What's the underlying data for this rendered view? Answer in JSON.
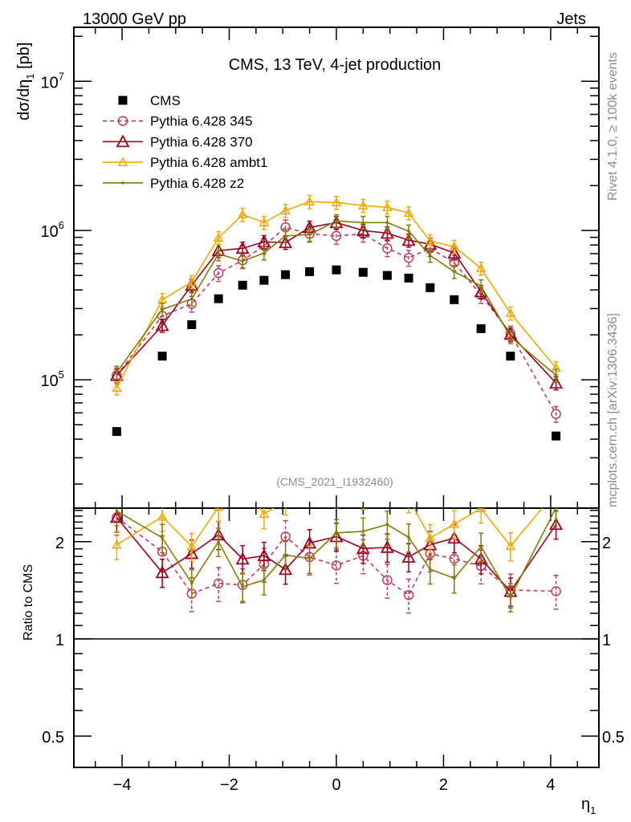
{
  "header": {
    "left": "13000 GeV pp",
    "right": "Jets"
  },
  "side_labels": {
    "rivet": "Rivet 4.1.0, ≥ 100k events",
    "mcplots": "mcplots.cern.ch [arXiv:1306.3436]"
  },
  "analysis_id": "(CMS_2021_I1932460)",
  "chart_data": {
    "type": "scatter",
    "title": "CMS, 13 TeV, 4-jet production",
    "ylabel": "dσ/dη",
    "ylabel_sub": "1",
    "ylabel_unit": "[pb]",
    "xlabel": "η",
    "xlabel_sub": "1",
    "ratio_ylabel": "Ratio to CMS",
    "xlim": [
      -4.9,
      4.9
    ],
    "ylim": [
      13800,
      23000000
    ],
    "yscale": "log",
    "ratio_ylim": [
      0.4,
      2.54
    ],
    "ratio_yscale": "log",
    "grid": false,
    "legend_position": "top-left",
    "x_ticks": [
      -4,
      -2,
      0,
      2,
      4
    ],
    "x_tick_labels": [
      "−4",
      "−2",
      "0",
      "2",
      "4"
    ],
    "y_ticks": [
      100000,
      1000000,
      10000000
    ],
    "y_tick_labels": [
      {
        "base": "10",
        "exp": "5"
      },
      {
        "base": "10",
        "exp": "6"
      },
      {
        "base": "10",
        "exp": "7"
      }
    ],
    "ratio_ticks": [
      0.5,
      1,
      2
    ],
    "ratio_tick_labels": [
      "0.5",
      "1",
      "2"
    ],
    "x": [
      -4.1,
      -3.25,
      -2.7,
      -2.2,
      -1.75,
      -1.35,
      -0.95,
      -0.5,
      0,
      0.5,
      0.95,
      1.35,
      1.75,
      2.2,
      2.7,
      3.25,
      4.1
    ],
    "reference": {
      "name": "CMS",
      "color": "#000000",
      "marker": "square",
      "values": [
        45000,
        144000,
        234000,
        349000,
        430000,
        464000,
        506000,
        530000,
        545000,
        525000,
        500000,
        480000,
        414000,
        344000,
        220000,
        144000,
        42000
      ]
    },
    "series": [
      {
        "name": "Pythia 6.428 345",
        "color": "#c23a5e",
        "marker": "circle",
        "dashed": true,
        "rel_error": 0.12,
        "values": [
          107000,
          268000,
          323000,
          518000,
          632000,
          790000,
          1050000,
          950000,
          920000,
          950000,
          760000,
          656000,
          760000,
          609000,
          370000,
          204000,
          59000
        ]
      },
      {
        "name": "Pythia 6.428 370",
        "color": "#a0001e",
        "marker": "triangle",
        "dashed": false,
        "rel_error": 0.1,
        "values": [
          107000,
          231000,
          430000,
          733000,
          760000,
          840000,
          830000,
          1050000,
          1130000,
          1000000,
          960000,
          860000,
          810000,
          706000,
          389000,
          202000,
          95000
        ]
      },
      {
        "name": "Pythia 6.428 ambt1",
        "color": "#f5a800",
        "marker": "triangle-small",
        "dashed": false,
        "rel_error": 0.1,
        "values": [
          88000,
          344000,
          452000,
          894000,
          1280000,
          1130000,
          1360000,
          1560000,
          1540000,
          1470000,
          1430000,
          1310000,
          850000,
          780000,
          558000,
          279000,
          120000
        ]
      },
      {
        "name": "Pythia 6.428 z2",
        "color": "#7f8000",
        "marker": "dot",
        "dashed": false,
        "rel_error": 0.1,
        "values": [
          112000,
          296000,
          348000,
          698000,
          624000,
          706000,
          920000,
          940000,
          1160000,
          1130000,
          1130000,
          990000,
          680000,
          530000,
          425000,
          194000,
          107000
        ]
      }
    ]
  }
}
